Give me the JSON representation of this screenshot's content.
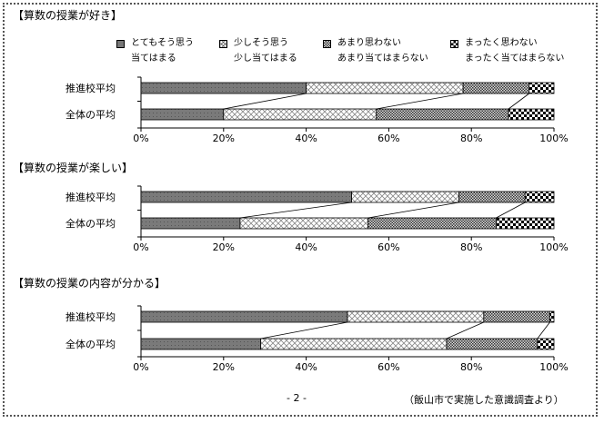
{
  "page_number": "- 2 -",
  "source_note": "（飯山市で実施した意識調査より）",
  "colors": {
    "cat1": "#777777",
    "cat2": "#ffffff",
    "cat3": "#a8a8a8",
    "cat4": "#000000"
  },
  "legend": [
    {
      "l1": "とてもそう思う",
      "l2": "当てはまる"
    },
    {
      "l1": "少しそう思う",
      "l2": "少し当てはまる"
    },
    {
      "l1": "あまり思わない",
      "l2": "あまり当てはまらない"
    },
    {
      "l1": "まったく思わない",
      "l2": "まったく当てはまらない"
    }
  ],
  "chart_data": [
    {
      "type": "bar",
      "stacked": true,
      "orientation": "horizontal",
      "title": "【算数の授業が好き】",
      "categories": [
        "推進校平均",
        "全体の平均"
      ],
      "xlim": [
        0,
        100
      ],
      "xticks": [
        "0%",
        "20%",
        "40%",
        "60%",
        "80%",
        "100%"
      ],
      "series": [
        {
          "name": "とてもそう思う／当てはまる",
          "values": [
            40,
            20
          ]
        },
        {
          "name": "少しそう思う／少し当てはまる",
          "values": [
            38,
            37
          ]
        },
        {
          "name": "あまり思わない／あまり当てはまらない",
          "values": [
            16,
            32
          ]
        },
        {
          "name": "まったく思わない／まったく当てはまらない",
          "values": [
            6,
            11
          ]
        }
      ]
    },
    {
      "type": "bar",
      "stacked": true,
      "orientation": "horizontal",
      "title": "【算数の授業が楽しい】",
      "categories": [
        "推進校平均",
        "全体の平均"
      ],
      "xlim": [
        0,
        100
      ],
      "xticks": [
        "0%",
        "20%",
        "40%",
        "60%",
        "80%",
        "100%"
      ],
      "series": [
        {
          "name": "とてもそう思う／当てはまる",
          "values": [
            51,
            24
          ]
        },
        {
          "name": "少しそう思う／少し当てはまる",
          "values": [
            26,
            31
          ]
        },
        {
          "name": "あまり思わない／あまり当てはまらない",
          "values": [
            16,
            31
          ]
        },
        {
          "name": "まったく思わない／まったく当てはまらない",
          "values": [
            7,
            14
          ]
        }
      ]
    },
    {
      "type": "bar",
      "stacked": true,
      "orientation": "horizontal",
      "title": "【算数の授業の内容が分かる】",
      "categories": [
        "推進校平均",
        "全体の平均"
      ],
      "xlim": [
        0,
        100
      ],
      "xticks": [
        "0%",
        "20%",
        "40%",
        "60%",
        "80%",
        "100%"
      ],
      "series": [
        {
          "name": "とてもそう思う／当てはまる",
          "values": [
            50,
            29
          ]
        },
        {
          "name": "少しそう思う／少し当てはまる",
          "values": [
            33,
            45
          ]
        },
        {
          "name": "あまり思わない／あまり当てはまらない",
          "values": [
            16,
            22
          ]
        },
        {
          "name": "まったく思わない／まったく当てはまらない",
          "values": [
            1,
            4
          ]
        }
      ]
    }
  ]
}
